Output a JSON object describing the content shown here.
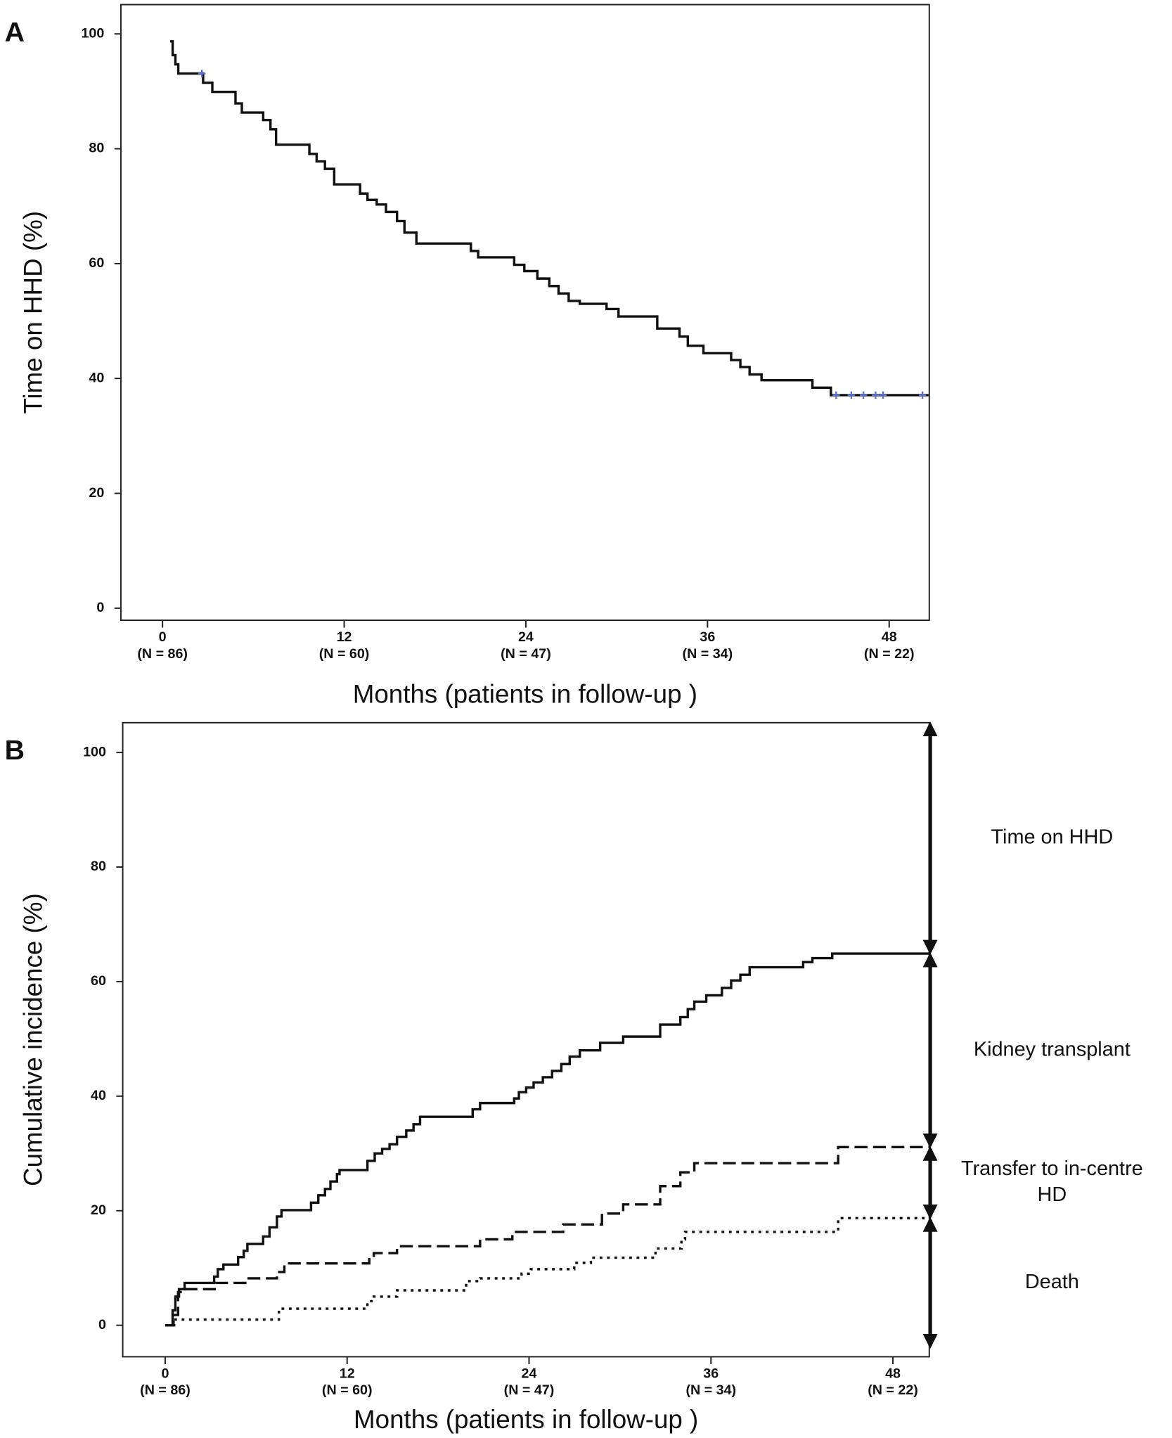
{
  "chart_data": [
    {
      "type": "line",
      "step": "post",
      "panel_label": "A",
      "ylabel": "Time on HHD (%)",
      "xlabel": "Months (patients in follow-up )",
      "xlim": [
        -2.75,
        50.65
      ],
      "ylim": [
        -2.1,
        105.1
      ],
      "xticks": [
        0,
        12,
        24,
        36,
        48
      ],
      "xtick_sublabels": [
        "(N = 86)",
        "(N = 60)",
        "(N = 47)",
        "(N = 34)",
        "(N = 22)"
      ],
      "yticks": [
        0,
        20,
        40,
        60,
        80,
        100
      ],
      "series": [
        {
          "color": "#111111",
          "dash": "solid",
          "x": [
            0.5,
            0.67,
            0.85,
            1.04,
            2.68,
            3.29,
            4.82,
            5.24,
            6.65,
            7.13,
            7.5,
            9.7,
            10.18,
            10.73,
            11.34,
            13.05,
            13.54,
            14.15,
            14.76,
            15.49,
            15.98,
            16.77,
            20.37,
            20.85,
            23.23,
            23.9,
            24.76,
            25.55,
            26.16,
            26.83,
            27.56,
            29.33,
            30.12,
            32.68,
            34.15,
            34.7,
            35.73,
            37.56,
            38.17,
            38.78,
            39.57,
            42.93,
            44.15,
            50.6
          ],
          "values": [
            98.7,
            96.3,
            94.7,
            93.1,
            91.5,
            89.9,
            87.9,
            86.3,
            85,
            83.4,
            80.7,
            79.1,
            77.8,
            76.5,
            73.8,
            72.2,
            71.1,
            70.3,
            69,
            67.4,
            65.4,
            63.5,
            62.2,
            61.1,
            59.8,
            58.7,
            57.4,
            56.1,
            54.8,
            53.5,
            53,
            52.1,
            50.8,
            48.7,
            47.3,
            45.7,
            44.4,
            43.2,
            42,
            40.7,
            39.7,
            38.4,
            37.1,
            37.1
          ]
        }
      ],
      "censored": {
        "color": "#5a6fd0",
        "x": [
          2.6,
          44.5,
          45.5,
          46.3,
          47.1,
          47.6,
          50.2
        ],
        "values": [
          93.1,
          37.1,
          37.1,
          37.1,
          37.1,
          37.1,
          37.1
        ]
      }
    },
    {
      "type": "line",
      "step": "post",
      "panel_label": "B",
      "ylabel": "Cumulative incidence (%)",
      "xlabel": "Months (patients in follow-up )",
      "xlim": [
        -2.8,
        50.4
      ],
      "ylim": [
        -5.5,
        105.2
      ],
      "xticks": [
        0,
        12,
        24,
        36,
        48
      ],
      "xtick_sublabels": [
        "(N = 86)",
        "(N = 60)",
        "(N = 47)",
        "(N = 34)",
        "(N = 22)"
      ],
      "yticks": [
        0,
        20,
        40,
        60,
        80,
        100
      ],
      "series": [
        {
          "color": "#111111",
          "dash": "solid",
          "x": [
            0,
            0.49,
            0.67,
            0.91,
            1.28,
            3.23,
            3.47,
            3.84,
            4.81,
            5.18,
            5.42,
            6.46,
            6.88,
            7.37,
            7.67,
            9.62,
            10.1,
            10.54,
            10.9,
            11.33,
            11.5,
            13.34,
            13.82,
            14.31,
            14.8,
            15.29,
            15.9,
            16.38,
            16.81,
            20.28,
            20.77,
            23.02,
            23.33,
            23.81,
            24.3,
            24.91,
            25.52,
            26.13,
            26.68,
            27.35,
            28.69,
            30.21,
            32.65,
            33.98,
            34.47,
            34.9,
            35.69,
            36.72,
            37.33,
            37.94,
            38.55,
            42.08,
            42.69,
            44.0,
            50.4
          ],
          "values": [
            0,
            2.6,
            5.0,
            6.3,
            7.4,
            8.5,
            9.8,
            10.6,
            11.9,
            13.0,
            14.2,
            15.5,
            17.1,
            19.0,
            20.1,
            21.4,
            22.7,
            23.8,
            25.1,
            26.4,
            27.1,
            28.7,
            30,
            30.8,
            31.6,
            32.9,
            34,
            35.1,
            36.4,
            37.7,
            38.8,
            39.6,
            40.7,
            41.5,
            42.4,
            43.3,
            44.4,
            45.6,
            46.9,
            48,
            49.3,
            50.4,
            52.5,
            53.8,
            55.2,
            56.5,
            57.6,
            58.9,
            60.2,
            61.2,
            62.5,
            63.4,
            64.1,
            64.9,
            64.9
          ]
        },
        {
          "color": "#111111",
          "dash": "dashed",
          "x": [
            0,
            0.55,
            0.85,
            1.28,
            3.35,
            5.42,
            7.37,
            7.86,
            13.46,
            13.76,
            15.29,
            20.77,
            22.9,
            26.25,
            28.81,
            30.21,
            32.65,
            33.98,
            34.9,
            44.39,
            50.4
          ],
          "values": [
            0,
            1.8,
            5.8,
            6.3,
            7.4,
            8.2,
            9.3,
            10.8,
            11.8,
            12.6,
            13.8,
            15,
            16.3,
            17.6,
            19.5,
            21.1,
            24.3,
            26.7,
            28.3,
            31.1,
            31.1
          ]
        },
        {
          "color": "#111111",
          "dash": "dotted",
          "x": [
            0,
            0.67,
            7.5,
            13.34,
            13.76,
            15.29,
            19.85,
            20.77,
            23.51,
            24.12,
            26.98,
            28.08,
            32.34,
            34.05,
            34.29,
            44.39,
            50.4
          ],
          "values": [
            0,
            1.0,
            2.9,
            4.2,
            5.0,
            6.1,
            7.7,
            8.2,
            9.0,
            9.8,
            10.9,
            11.8,
            13.4,
            15.0,
            16.3,
            18.7,
            18.7
          ]
        }
      ],
      "brackets": [
        {
          "lines": [
            "Time on HHD"
          ],
          "from": 105.2,
          "to": 64.9
        },
        {
          "lines": [
            "Kidney transplant"
          ],
          "from": 64.9,
          "to": 31.1
        },
        {
          "lines": [
            "Transfer to in-centre",
            "HD"
          ],
          "from": 31.1,
          "to": 18.7
        },
        {
          "lines": [
            "Death"
          ],
          "from": 18.7,
          "to": -3.9
        }
      ]
    }
  ]
}
